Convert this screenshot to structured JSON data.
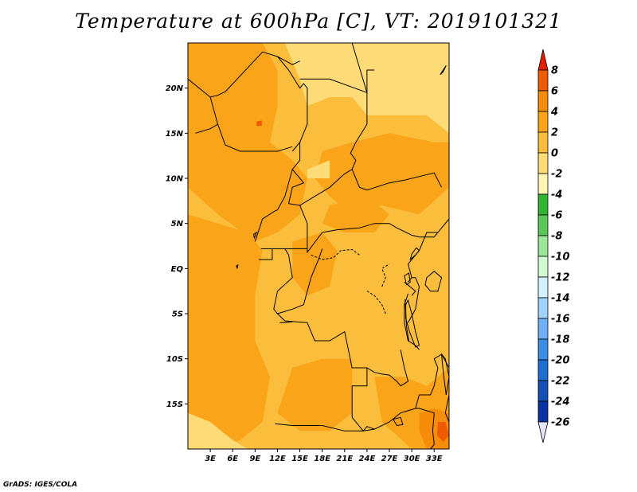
{
  "title": "Temperature at 600hPa [C], VT: 2019101321",
  "credit": "GrADS: IGES/COLA",
  "map": {
    "lon_range": [
      0,
      35
    ],
    "lat_range": [
      -20,
      25
    ],
    "x_ticks": [
      {
        "lon": 3,
        "label": "3E"
      },
      {
        "lon": 6,
        "label": "6E"
      },
      {
        "lon": 9,
        "label": "9E"
      },
      {
        "lon": 12,
        "label": "12E"
      },
      {
        "lon": 15,
        "label": "15E"
      },
      {
        "lon": 18,
        "label": "18E"
      },
      {
        "lon": 21,
        "label": "21E"
      },
      {
        "lon": 24,
        "label": "24E"
      },
      {
        "lon": 27,
        "label": "27E"
      },
      {
        "lon": 30,
        "label": "30E"
      },
      {
        "lon": 33,
        "label": "33E"
      }
    ],
    "y_ticks": [
      {
        "lat": 20,
        "label": "20N"
      },
      {
        "lat": 15,
        "label": "15N"
      },
      {
        "lat": 10,
        "label": "10N"
      },
      {
        "lat": 5,
        "label": "5N"
      },
      {
        "lat": 0,
        "label": "EQ"
      },
      {
        "lat": -5,
        "label": "5S"
      },
      {
        "lat": -10,
        "label": "10S"
      },
      {
        "lat": -15,
        "label": "15S"
      }
    ]
  },
  "colorbar": {
    "labels": [
      "8",
      "6",
      "4",
      "2",
      "0",
      "-2",
      "-4",
      "-6",
      "-8",
      "-10",
      "-12",
      "-14",
      "-16",
      "-18",
      "-20",
      "-22",
      "-24",
      "-26"
    ],
    "colors": [
      "#e61e00",
      "#f05a00",
      "#f58c0a",
      "#faa519",
      "#fbbe3c",
      "#fddc78",
      "#fff5b4",
      "#32b432",
      "#5ac85a",
      "#9be69b",
      "#d2fad2",
      "#d2f0ff",
      "#a0d2fa",
      "#6eaff5",
      "#3c8ce6",
      "#1e6ed2",
      "#1450b4",
      "#0a32a0",
      "#080c6e"
    ],
    "top_color": "#e61e00",
    "bottom_color": "#e6e6fa"
  },
  "field_colors": {
    "c_lt_m2": "#fddc78",
    "c_m2_0": "#fbbe3c",
    "c_0_2": "#faa519",
    "c_2_4": "#f58c0a",
    "c_4_6": "#f05a00"
  }
}
